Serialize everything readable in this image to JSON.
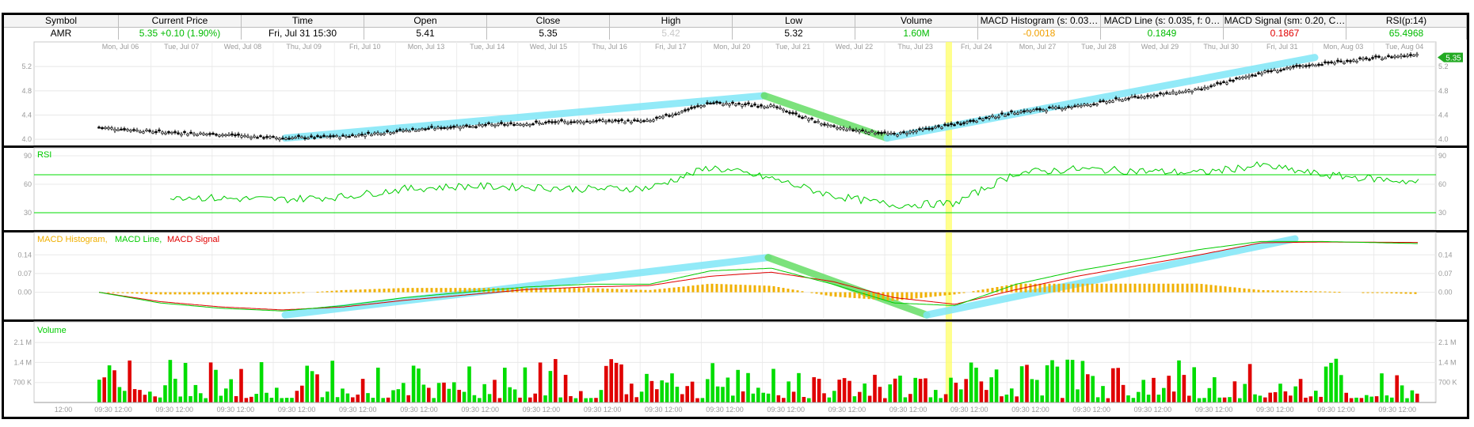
{
  "header": {
    "columns": [
      {
        "title": "Symbol",
        "value": "AMR",
        "color": "#000000"
      },
      {
        "title": "Current Price",
        "value": "5.35 +0.10 (1.90%)",
        "color": "#00bb00"
      },
      {
        "title": "Time",
        "value": "Fri, Jul 31  15:30",
        "color": "#000000"
      },
      {
        "title": "Open",
        "value": "5.41",
        "color": "#000000"
      },
      {
        "title": "Close",
        "value": "5.35",
        "color": "#000000"
      },
      {
        "title": "High",
        "value": "5.42",
        "color": "#c8c8c8"
      },
      {
        "title": "Low",
        "value": "5.32",
        "color": "#000000"
      },
      {
        "title": "Volume",
        "value": "1.60M",
        "color": "#00bb00"
      },
      {
        "title": "MACD Histogram (s: 0.03…",
        "value": "-0.0018",
        "color": "#f0a000"
      },
      {
        "title": "MACD Line (s: 0.035, f: 0…",
        "value": "0.1849",
        "color": "#00bb00"
      },
      {
        "title": "MACD Signal (sm: 0.20, C…",
        "value": "0.1867",
        "color": "#e00000"
      },
      {
        "title": "RSI(p:14)",
        "value": "65.4968",
        "color": "#00bb00"
      }
    ]
  },
  "chart_data": [
    {
      "type": "candlestick",
      "title": "",
      "dates": [
        "Mon, Jul 06",
        "Tue, Jul 07",
        "Wed, Jul 08",
        "Thu, Jul 09",
        "Fri, Jul 10",
        "Mon, Jul 13",
        "Tue, Jul 14",
        "Wed, Jul 15",
        "Thu, Jul 16",
        "Fri, Jul 17",
        "Mon, Jul 20",
        "Tue, Jul 21",
        "Wed, Jul 22",
        "Thu, Jul 23",
        "Fri, Jul 24",
        "Mon, Jul 27",
        "Tue, Jul 28",
        "Wed, Jul 29",
        "Thu, Jul 30",
        "Fri, Jul 31",
        "Mon, Aug 03",
        "Tue, Aug 04"
      ],
      "y_ticks": [
        4.0,
        4.4,
        4.8,
        5.2
      ],
      "ylim": [
        3.95,
        5.45
      ],
      "close_approx": [
        4.2,
        4.12,
        4.08,
        4.02,
        4.05,
        4.15,
        4.22,
        4.26,
        4.3,
        4.3,
        4.6,
        4.55,
        4.2,
        4.08,
        4.25,
        4.45,
        4.55,
        4.7,
        4.82,
        5.1,
        5.25,
        5.35
      ],
      "last_price": "5.35",
      "highlight_date": "Fri, Jul 24"
    },
    {
      "type": "line",
      "title": "RSI",
      "y_ticks": [
        30,
        60,
        90
      ],
      "ylim": [
        15,
        95
      ],
      "levels": [
        30,
        70
      ],
      "values_approx": [
        52,
        48,
        45,
        44,
        47,
        55,
        58,
        57,
        55,
        56,
        78,
        66,
        48,
        38,
        40,
        72,
        76,
        74,
        72,
        80,
        70,
        65
      ]
    },
    {
      "type": "line",
      "legend": [
        "MACD Histogram",
        "MACD Line",
        "MACD Signal"
      ],
      "y_ticks": [
        0.0,
        0.07,
        0.14
      ],
      "ylim": [
        -0.09,
        0.2
      ],
      "macd_line_approx": [
        0.0,
        -0.04,
        -0.06,
        -0.07,
        -0.05,
        -0.02,
        0.0,
        0.02,
        0.03,
        0.03,
        0.08,
        0.09,
        0.03,
        -0.04,
        -0.05,
        0.03,
        0.08,
        0.12,
        0.16,
        0.19,
        0.19,
        0.185
      ],
      "macd_signal_approx": [
        0.0,
        -0.035,
        -0.055,
        -0.066,
        -0.055,
        -0.03,
        -0.01,
        0.01,
        0.02,
        0.025,
        0.06,
        0.075,
        0.04,
        -0.02,
        -0.045,
        0.01,
        0.06,
        0.1,
        0.14,
        0.185,
        0.188,
        0.187
      ]
    },
    {
      "type": "bar",
      "title": "Volume",
      "y_ticks": [
        "700 K",
        "1.4 M",
        "2.1 M"
      ],
      "ylim": [
        0,
        2.6
      ],
      "x_tick_labels": [
        "12:00",
        "09:30 12:00"
      ],
      "note": "intraday volume bars, green up / red down"
    }
  ],
  "rsi_label": "RSI",
  "volume_label": "Volume",
  "macd_labels": {
    "hist": "MACD Histogram,",
    "line": "MACD Line,",
    "signal": "MACD Signal"
  },
  "colors": {
    "up": "#00dd00",
    "down": "#e00000",
    "rsi": "#00cc00",
    "hist": "#f0b000",
    "signal": "#e00000",
    "trend_cyan": "#7fe7f7",
    "trend_green": "#66dd66",
    "highlight": "#ffff66"
  }
}
